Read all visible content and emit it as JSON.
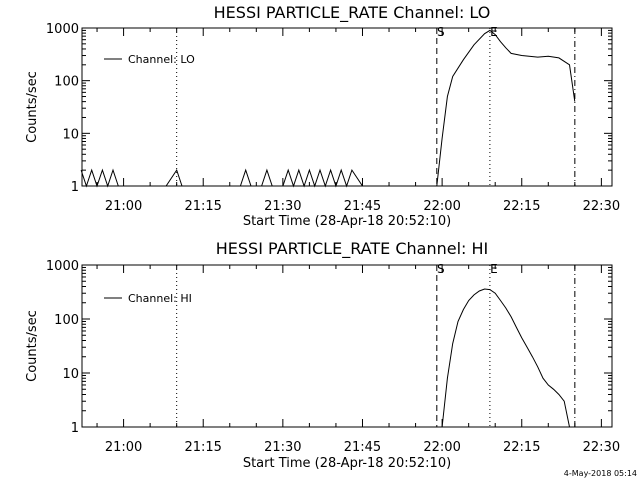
{
  "chart_data": [
    {
      "type": "line",
      "title": "HESSI PARTICLE_RATE Channel: LO",
      "xlabel": "Start Time (28-Apr-18 20:52:10)",
      "ylabel": "Counts/sec",
      "y_scale": "log",
      "ylim": [
        1,
        1000
      ],
      "xlim": [
        "20:52:10",
        "22:32:00"
      ],
      "x_ticks": [
        "21:00",
        "21:15",
        "21:30",
        "21:45",
        "22:00",
        "22:15",
        "22:30"
      ],
      "y_ticks": [
        "1",
        "10",
        "100",
        "1000"
      ],
      "grid": false,
      "legend": {
        "position": "top-left",
        "entries": [
          "Channel: LO"
        ]
      },
      "markers": [
        {
          "label": "",
          "time": "21:10",
          "style": "dotted"
        },
        {
          "label": "S",
          "time": "21:59",
          "style": "dashed"
        },
        {
          "label": "E",
          "time": "22:09",
          "style": "dotted"
        },
        {
          "label": "",
          "time": "22:25",
          "style": "dash-dot"
        }
      ],
      "series": [
        {
          "name": "Channel: LO",
          "x": [
            "20:52",
            "20:53",
            "20:54",
            "20:55",
            "20:56",
            "20:57",
            "20:58",
            "20:59",
            "21:00",
            "21:08",
            "21:10",
            "21:11",
            "21:22",
            "21:23",
            "21:24",
            "21:26",
            "21:27",
            "21:28",
            "21:30",
            "21:31",
            "21:32",
            "21:33",
            "21:34",
            "21:35",
            "21:36",
            "21:37",
            "21:38",
            "21:39",
            "21:40",
            "21:41",
            "21:42",
            "21:43",
            "21:45",
            "21:59",
            "22:00",
            "22:01",
            "22:02",
            "22:04",
            "22:06",
            "22:08",
            "22:09",
            "22:10",
            "22:11",
            "22:12",
            "22:13",
            "22:15",
            "22:18",
            "22:20",
            "22:22",
            "22:24",
            "22:25"
          ],
          "y": [
            2,
            1,
            2,
            1,
            2,
            1,
            2,
            1,
            1,
            1,
            2,
            1,
            1,
            2,
            1,
            1,
            2,
            1,
            1,
            2,
            1,
            2,
            1,
            2,
            1,
            2,
            1,
            2,
            1,
            2,
            1,
            2,
            1,
            1,
            8,
            50,
            120,
            250,
            480,
            780,
            900,
            750,
            550,
            420,
            330,
            300,
            280,
            290,
            270,
            200,
            40
          ]
        }
      ]
    },
    {
      "type": "line",
      "title": "HESSI PARTICLE_RATE Channel: HI",
      "xlabel": "Start Time (28-Apr-18 20:52:10)",
      "ylabel": "Counts/sec",
      "y_scale": "log",
      "ylim": [
        1,
        1000
      ],
      "xlim": [
        "20:52:10",
        "22:32:00"
      ],
      "x_ticks": [
        "21:00",
        "21:15",
        "21:30",
        "21:45",
        "22:00",
        "22:15",
        "22:30"
      ],
      "y_ticks": [
        "1",
        "10",
        "100",
        "1000"
      ],
      "grid": false,
      "legend": {
        "position": "top-left",
        "entries": [
          "Channel: HI"
        ]
      },
      "markers": [
        {
          "label": "",
          "time": "21:10",
          "style": "dotted"
        },
        {
          "label": "S",
          "time": "21:59",
          "style": "dashed"
        },
        {
          "label": "E",
          "time": "22:09",
          "style": "dotted"
        },
        {
          "label": "",
          "time": "22:25",
          "style": "dash-dot"
        }
      ],
      "series": [
        {
          "name": "Channel: HI",
          "x": [
            "22:00",
            "22:01",
            "22:02",
            "22:03",
            "22:04",
            "22:05",
            "22:06",
            "22:07",
            "22:08",
            "22:09",
            "22:10",
            "22:11",
            "22:12",
            "22:13",
            "22:14",
            "22:15",
            "22:16",
            "22:17",
            "22:18",
            "22:19",
            "22:20",
            "22:21",
            "22:22",
            "22:23",
            "22:24"
          ],
          "y": [
            1,
            8,
            35,
            90,
            150,
            220,
            280,
            330,
            360,
            350,
            300,
            220,
            160,
            110,
            70,
            45,
            30,
            20,
            13,
            8,
            6,
            5,
            4,
            3,
            1
          ]
        }
      ]
    }
  ],
  "footer": {
    "timestamp": "4-May-2018 05:14"
  }
}
